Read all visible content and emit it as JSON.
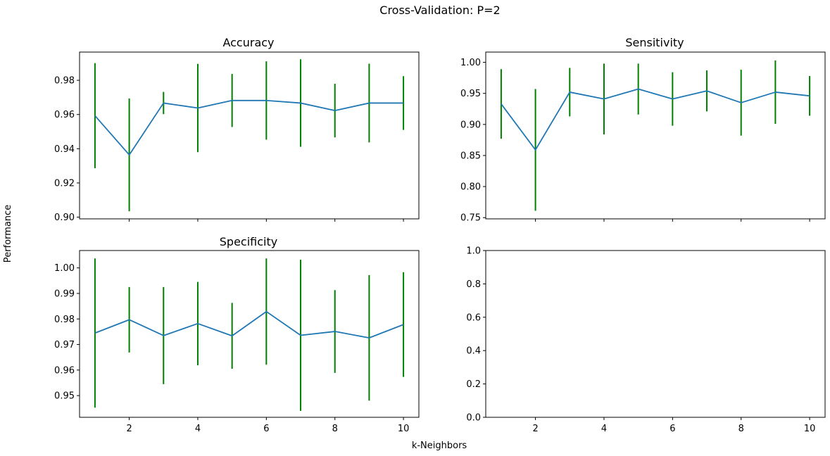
{
  "figure": {
    "suptitle": "Cross-Validation: P=2",
    "xlabel": "k-Neighbors",
    "ylabel": "Performance"
  },
  "colors": {
    "line": "#1f77b4",
    "errorbar": "#008000",
    "axes": "#000000"
  },
  "chart_data": [
    {
      "type": "line",
      "title": "Accuracy",
      "x": [
        1,
        2,
        3,
        4,
        5,
        6,
        7,
        8,
        9,
        10
      ],
      "series": [
        {
          "values": [
            0.9593,
            0.9364,
            0.9667,
            0.9638,
            0.9682,
            0.9682,
            0.9667,
            0.9623,
            0.9667,
            0.9667
          ],
          "error": [
            0.0307,
            0.033,
            0.0065,
            0.0258,
            0.0155,
            0.0229,
            0.0256,
            0.0157,
            0.023,
            0.0157
          ]
        }
      ],
      "xlim": [
        0.55,
        10.45
      ],
      "ylim": [
        0.899,
        0.9965
      ],
      "yticks": [
        0.9,
        0.92,
        0.94,
        0.96,
        0.98
      ],
      "ytick_labels": [
        "0.90",
        "0.92",
        "0.94",
        "0.96",
        "0.98"
      ],
      "xticks": [
        2,
        4,
        6,
        8,
        10
      ],
      "xtick_labels": []
    },
    {
      "type": "line",
      "title": "Sensitivity",
      "x": [
        1,
        2,
        3,
        4,
        5,
        6,
        7,
        8,
        9,
        10
      ],
      "series": [
        {
          "values": [
            0.933,
            0.859,
            0.952,
            0.941,
            0.957,
            0.941,
            0.954,
            0.935,
            0.952,
            0.946
          ],
          "error": [
            0.056,
            0.098,
            0.039,
            0.057,
            0.041,
            0.043,
            0.033,
            0.053,
            0.051,
            0.032
          ]
        }
      ],
      "xlim": [
        0.55,
        10.45
      ],
      "ylim": [
        0.748,
        1.0165
      ],
      "yticks": [
        0.75,
        0.8,
        0.85,
        0.9,
        0.95,
        1.0
      ],
      "ytick_labels": [
        "0.75",
        "0.80",
        "0.85",
        "0.90",
        "0.95",
        "1.00"
      ],
      "xticks": [
        2,
        4,
        6,
        8,
        10
      ],
      "xtick_labels": []
    },
    {
      "type": "line",
      "title": "Specificity",
      "x": [
        1,
        2,
        3,
        4,
        5,
        6,
        7,
        8,
        9,
        10
      ],
      "series": [
        {
          "values": [
            0.9745,
            0.9797,
            0.9735,
            0.9782,
            0.9734,
            0.9829,
            0.9736,
            0.9751,
            0.9726,
            0.9778
          ],
          "error": [
            0.0292,
            0.0128,
            0.019,
            0.0163,
            0.0129,
            0.0208,
            0.0296,
            0.0162,
            0.0246,
            0.0205
          ]
        }
      ],
      "xlim": [
        0.55,
        10.45
      ],
      "ylim": [
        0.9415,
        1.0068
      ],
      "yticks": [
        0.95,
        0.96,
        0.97,
        0.98,
        0.99,
        1.0
      ],
      "ytick_labels": [
        "0.95",
        "0.96",
        "0.97",
        "0.98",
        "0.99",
        "1.00"
      ],
      "xticks": [
        2,
        4,
        6,
        8,
        10
      ],
      "xtick_labels": [
        "2",
        "4",
        "6",
        "8",
        "10"
      ]
    },
    {
      "type": "line",
      "title": "",
      "x": [],
      "series": [],
      "xlim": [
        0.55,
        10.45
      ],
      "ylim": [
        0,
        1
      ],
      "yticks": [
        0,
        0.2,
        0.4,
        0.6,
        0.8,
        1.0
      ],
      "ytick_labels": [
        "0.0",
        "0.2",
        "0.4",
        "0.6",
        "0.8",
        "1.0"
      ],
      "xticks": [
        2,
        4,
        6,
        8,
        10
      ],
      "xtick_labels": [
        "2",
        "4",
        "6",
        "8",
        "10"
      ]
    }
  ]
}
